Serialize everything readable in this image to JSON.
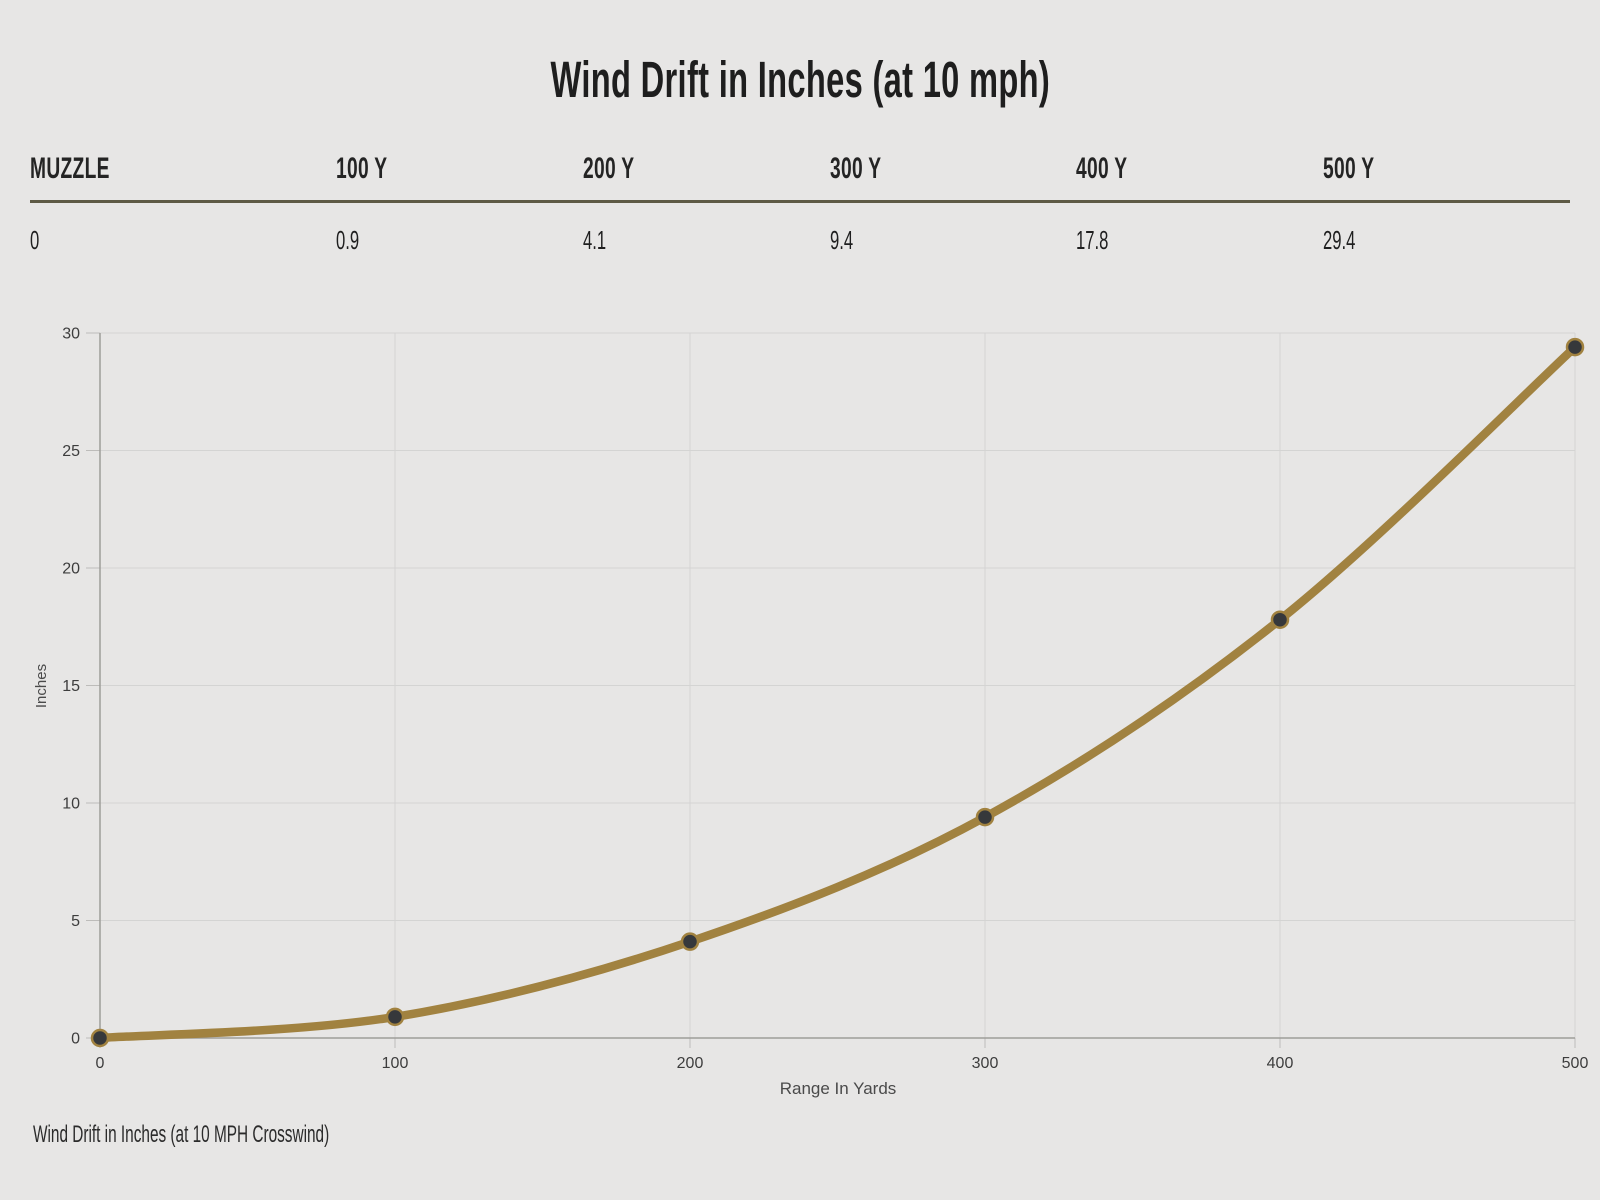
{
  "page": {
    "background": "#e7e6e5",
    "title": "Wind Drift in Inches (at 10 mph)",
    "caption": "Wind Drift in Inches (at 10 MPH Crosswind)"
  },
  "table": {
    "headers": [
      "MUZZLE",
      "100 Y",
      "200 Y",
      "300 Y",
      "400 Y",
      "500 Y"
    ],
    "values": [
      "0",
      "0.9",
      "4.1",
      "9.4",
      "17.8",
      "29.4"
    ],
    "divider_color": "#5e5a45"
  },
  "chart_data": {
    "type": "line",
    "title": "Wind Drift in Inches (at 10 mph)",
    "x": [
      0,
      100,
      200,
      300,
      400,
      500
    ],
    "series": [
      {
        "name": "Wind Drift",
        "values": [
          0,
          0.9,
          4.1,
          9.4,
          17.8,
          29.4
        ]
      }
    ],
    "xlabel": "Range In Yards",
    "ylabel": "Inches",
    "xticks": [
      0,
      100,
      200,
      300,
      400,
      500
    ],
    "yticks": [
      0,
      5,
      10,
      15,
      20,
      25,
      30
    ],
    "xlim": [
      0,
      500
    ],
    "ylim": [
      0,
      30
    ],
    "grid": true,
    "legend": "none",
    "line_color": "#a18240",
    "point_color": "#36383b",
    "grid_color": "#d4d4d3",
    "axis_color": "#9e9d9a",
    "tick_mark_color": "#bdbcba",
    "tick_color": "#3d3d3d",
    "label_color": "#4a4a4a"
  }
}
